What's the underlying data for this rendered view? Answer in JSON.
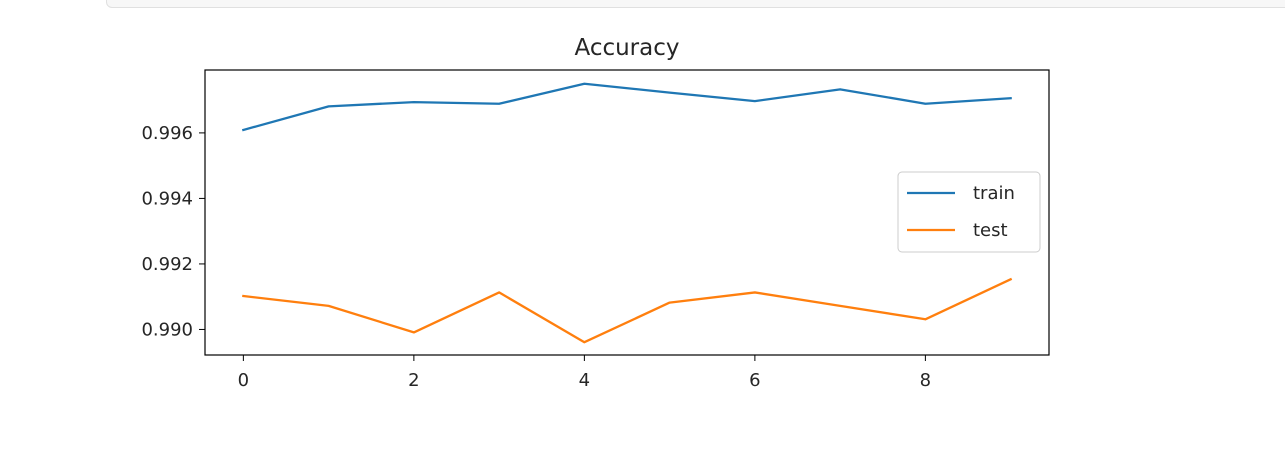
{
  "chart_data": {
    "type": "line",
    "title": "Accuracy",
    "xlabel": "",
    "ylabel": "",
    "x": [
      0,
      1,
      2,
      3,
      4,
      5,
      6,
      7,
      8,
      9
    ],
    "xlim": [
      -0.45,
      9.45
    ],
    "ylim": [
      0.98922,
      0.99792
    ],
    "x_ticks": [
      "0",
      "2",
      "4",
      "6",
      "8"
    ],
    "y_ticks": [
      "0.990",
      "0.992",
      "0.994",
      "0.996"
    ],
    "legend_position": "center-right",
    "grid": false,
    "series": [
      {
        "name": "train",
        "color": "#1f77b4",
        "values": [
          0.99609,
          0.99681,
          0.99694,
          0.99689,
          0.9975,
          0.99723,
          0.99697,
          0.99733,
          0.99689,
          0.99706
        ]
      },
      {
        "name": "test",
        "color": "#ff7f0e",
        "values": [
          0.99102,
          0.99072,
          0.98991,
          0.99113,
          0.98961,
          0.99082,
          0.99113,
          0.99072,
          0.99031,
          0.99153
        ]
      }
    ]
  }
}
